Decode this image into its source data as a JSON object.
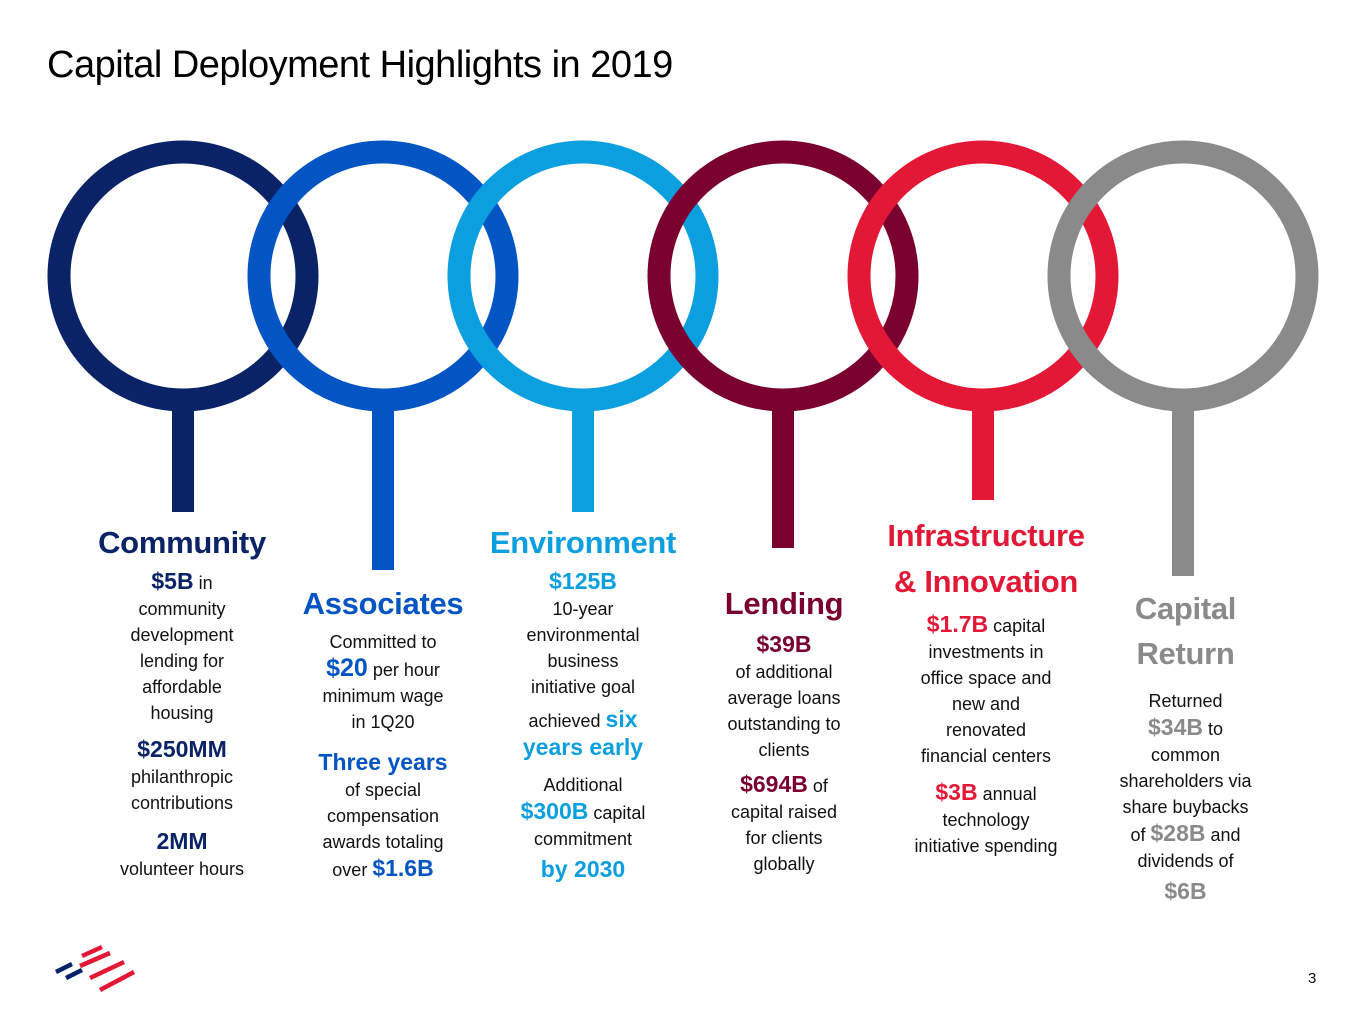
{
  "title": "Capital Deployment Highlights in 2019",
  "page_number": "3",
  "colors": {
    "community": "#0a2266",
    "associates": "#0355c3",
    "environment": "#0b9fdf",
    "lending": "#7a0030",
    "infrastructure": "#e31837",
    "capital_return": "#8a8a8a"
  },
  "logo": {
    "icon": "bank-flag-logo-icon",
    "blue": "#012169",
    "red": "#e31837"
  },
  "columns": [
    {
      "key": "community",
      "heading": "Community",
      "items": [
        {
          "highlight": "$5B",
          "suffix": " in",
          "text": [
            "community",
            "development",
            "lending for",
            "affordable",
            "housing"
          ]
        },
        {
          "highlight": "$250MM",
          "text": [
            "philanthropic",
            "contributions"
          ]
        },
        {
          "highlight": "2MM",
          "text": [
            "volunteer hours"
          ]
        }
      ]
    },
    {
      "key": "associates",
      "heading": "Associates",
      "lines": {
        "l1": "Committed to",
        "l2_hl": "$20",
        "l2_rest": " per hour",
        "l3": "minimum wage",
        "l4": "in 1Q20",
        "hl2": "Three years",
        "l5": "of special",
        "l6": "compensation",
        "l7": "awards totaling",
        "l8_pre": "over ",
        "l8_hl": "$1.6B"
      }
    },
    {
      "key": "environment",
      "heading": "Environment",
      "lines": {
        "hl1": "$125B",
        "l1": "10-year",
        "l2": "environmental",
        "l3": "business",
        "l4": "initiative goal",
        "l5_pre": "achieved ",
        "l5_hl": "six",
        "hl2": "years early",
        "l6": "Additional",
        "l7_hl": "$300B",
        "l7_rest": " capital",
        "l8": "commitment",
        "hl3": "by 2030"
      }
    },
    {
      "key": "lending",
      "heading": "Lending",
      "lines": {
        "hl1": "$39B",
        "l1": "of additional",
        "l2": "average loans",
        "l3": "outstanding to",
        "l4": "clients",
        "l5_hl": "$694B",
        "l5_rest": " of",
        "l6": "capital raised",
        "l7": "for clients",
        "l8": "globally"
      }
    },
    {
      "key": "infrastructure",
      "heading_l1": "Infrastructure",
      "heading_l2": "& Innovation",
      "lines": {
        "l1_hl": "$1.7B",
        "l1_rest": " capital",
        "l2": "investments in",
        "l3": "office space and",
        "l4": "new and",
        "l5": "renovated",
        "l6": "financial centers",
        "l7_hl": "$3B",
        "l7_rest": " annual",
        "l8": "technology",
        "l9": "initiative spending"
      }
    },
    {
      "key": "capital_return",
      "heading_l1": "Capital",
      "heading_l2": "Return",
      "lines": {
        "l1": "Returned",
        "l2_hl": "$34B",
        "l2_rest": " to",
        "l3": "common",
        "l4": "shareholders via",
        "l5": "share buybacks",
        "l6_pre": "of ",
        "l6_hl": "$28B",
        "l6_rest": " and",
        "l7": "dividends of",
        "hl_last": "$6B"
      }
    }
  ]
}
